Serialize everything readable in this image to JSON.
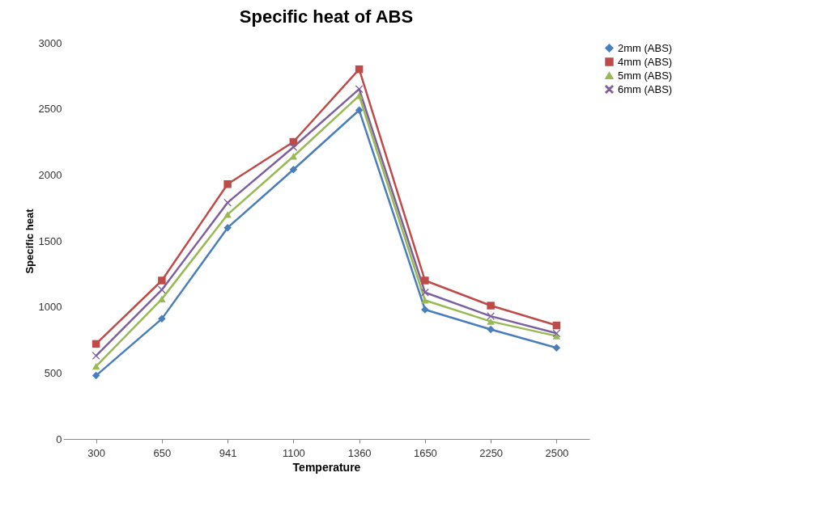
{
  "chart_data": {
    "type": "line",
    "title": "Specific heat of ABS",
    "xlabel": "Temperature",
    "ylabel": "Specific heat",
    "categories": [
      "300",
      "650",
      "941",
      "1100",
      "1360",
      "1650",
      "2250",
      "2500"
    ],
    "series": [
      {
        "name": "2mm (ABS)",
        "color": "#4a7ebb",
        "marker": "diamond",
        "values": [
          480,
          910,
          1600,
          2040,
          2490,
          980,
          830,
          690
        ]
      },
      {
        "name": "4mm (ABS)",
        "color": "#be4b48",
        "marker": "square",
        "values": [
          720,
          1200,
          1930,
          2250,
          2800,
          1200,
          1010,
          860
        ]
      },
      {
        "name": "5mm (ABS)",
        "color": "#98b954",
        "marker": "triangle",
        "values": [
          550,
          1060,
          1700,
          2140,
          2600,
          1050,
          890,
          780
        ]
      },
      {
        "name": "6mm (ABS)",
        "color": "#7d60a0",
        "marker": "cross",
        "values": [
          630,
          1130,
          1790,
          2210,
          2650,
          1110,
          930,
          800
        ]
      }
    ],
    "ylim": [
      0,
      3000
    ],
    "yticks": [
      0,
      500,
      1000,
      1500,
      2000,
      2500,
      3000
    ],
    "grid": false,
    "legend": "right"
  }
}
